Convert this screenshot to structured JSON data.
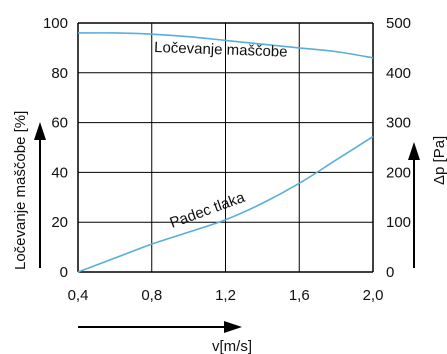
{
  "chart_data": {
    "type": "line",
    "x": [
      0.4,
      0.8,
      1.2,
      1.6,
      2.0
    ],
    "x_tick_labels": [
      "0,4",
      "0,8",
      "1,2",
      "1,6",
      "2,0"
    ],
    "xlim": [
      0.4,
      2.0
    ],
    "xlabel": "v[m/s]",
    "y_left": {
      "label": "Ločevanje maščobe [%]",
      "ylim": [
        0,
        100
      ],
      "ticks": [
        0,
        20,
        40,
        60,
        80,
        100
      ],
      "tick_labels": [
        "0",
        "20",
        "40",
        "60",
        "80",
        "100"
      ]
    },
    "y_right": {
      "label": "Δp [Pa]",
      "ylim": [
        0,
        500
      ],
      "ticks": [
        0,
        100,
        200,
        300,
        400,
        500
      ],
      "tick_labels": [
        "0",
        "100",
        "200",
        "300",
        "400",
        "500"
      ]
    },
    "series": [
      {
        "name": "Ločevanje maščobe",
        "axis": "left",
        "color": "#5aaed8",
        "x": [
          0.4,
          0.6,
          0.8,
          1.0,
          1.2,
          1.4,
          1.6,
          1.8,
          2.0
        ],
        "values": [
          96,
          96,
          95.5,
          94.5,
          93,
          91.5,
          90,
          88.5,
          86
        ]
      },
      {
        "name": "Padec tlaka",
        "axis": "right",
        "color": "#5aaed8",
        "x": [
          0.4,
          0.6,
          0.8,
          1.0,
          1.2,
          1.4,
          1.6,
          1.8,
          2.0
        ],
        "values": [
          0,
          28,
          56,
          80,
          105,
          138,
          178,
          225,
          272
        ]
      }
    ],
    "grid": true,
    "legend": "none"
  }
}
